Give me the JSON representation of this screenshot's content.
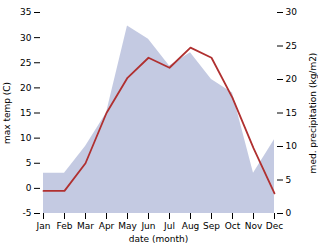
{
  "chart_data": {
    "type": "line",
    "xlabel": "date (month)",
    "ylabel": "max temp (C)",
    "y2label": "med. precipitation (kg/m2)",
    "categories": [
      "Jan",
      "Feb",
      "Mar",
      "Apr",
      "May",
      "Jun",
      "Jul",
      "Aug",
      "Sep",
      "Oct",
      "Nov",
      "Dec"
    ],
    "ylim": [
      -5,
      35
    ],
    "yticks": [
      -5,
      0,
      5,
      10,
      15,
      20,
      25,
      30,
      35
    ],
    "y2lim": [
      0,
      30
    ],
    "y2ticks": [
      0,
      5,
      10,
      15,
      20,
      25,
      30
    ],
    "grid": false,
    "series": [
      {
        "type": "area",
        "axis": "y2",
        "color": "#b0b8d8",
        "values": [
          6,
          6,
          10,
          15,
          28,
          26,
          22,
          24,
          20,
          18,
          6,
          11
        ]
      },
      {
        "type": "line",
        "color": "#b03030",
        "values": [
          -0.5,
          -0.5,
          5,
          15,
          22,
          26,
          24,
          28,
          26,
          18,
          8,
          -1
        ]
      }
    ]
  }
}
